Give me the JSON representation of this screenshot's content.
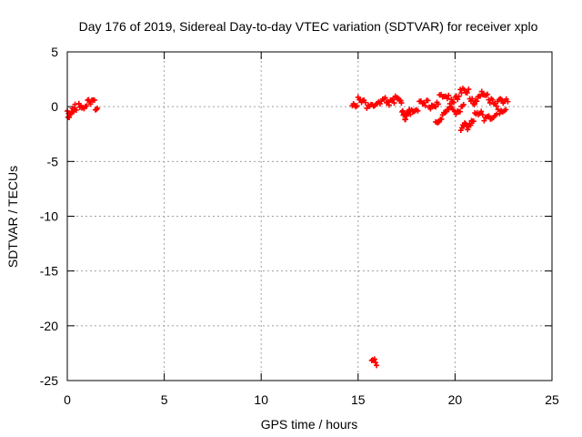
{
  "chart_data": {
    "type": "scatter",
    "title": "Day 176 of 2019, Sidereal Day-to-day VTEC variation (SDTVAR) for receiver xplo",
    "xlabel": "GPS time / hours",
    "ylabel": "SDTVAR / TECUs",
    "xlim": [
      0,
      25
    ],
    "ylim": [
      -25,
      5
    ],
    "xticks": [
      0,
      5,
      10,
      15,
      20,
      25
    ],
    "yticks": [
      -25,
      -20,
      -15,
      -10,
      -5,
      0,
      5
    ],
    "grid": true,
    "marker_color": "#ff0000",
    "series": [
      {
        "name": "SDTVAR",
        "segments": [
          {
            "x": [
              0.0,
              0.1,
              0.2,
              0.3,
              0.4,
              0.5
            ],
            "y": [
              -0.4,
              -0.7,
              -0.3,
              -0.6,
              -0.2,
              -0.5
            ]
          },
          {
            "x": [
              0.6,
              0.8,
              1.0,
              1.2,
              1.4,
              1.6
            ],
            "y": [
              0.5,
              0.1,
              0.4,
              0.0,
              0.3,
              -0.1
            ]
          },
          {
            "x": [
              14.7,
              15.0,
              15.3,
              15.6,
              16.0,
              16.4,
              16.8,
              17.1,
              17.3,
              17.5,
              17.7,
              18.0,
              18.4,
              18.8,
              19.2,
              19.6,
              20.0,
              20.4,
              20.7,
              21.0,
              21.3,
              21.6,
              22.0,
              22.4,
              22.8
            ],
            "y": [
              0.3,
              0.6,
              0.2,
              0.3,
              0.1,
              0.4,
              0.7,
              0.4,
              -0.3,
              -1.2,
              -0.3,
              0.1,
              0.0,
              0.3,
              0.6,
              0.7,
              0.9,
              1.3,
              1.1,
              0.6,
              0.9,
              1.0,
              0.6,
              0.3,
              0.2
            ]
          },
          {
            "x": [
              19.0,
              19.3,
              19.6,
              19.9,
              20.2,
              20.5
            ],
            "y": [
              -1.3,
              -0.8,
              -0.5,
              -0.3,
              -0.1,
              0.2
            ]
          },
          {
            "x": [
              20.3,
              20.6,
              20.9,
              21.2,
              21.5,
              21.9,
              22.3,
              22.7
            ],
            "y": [
              -2.3,
              -1.7,
              -1.1,
              -0.8,
              -0.8,
              -0.7,
              -0.7,
              -0.6
            ]
          },
          {
            "x": [
              15.7,
              15.85,
              16.0
            ],
            "y": [
              -22.8,
              -23.0,
              -23.3
            ]
          }
        ]
      }
    ]
  }
}
